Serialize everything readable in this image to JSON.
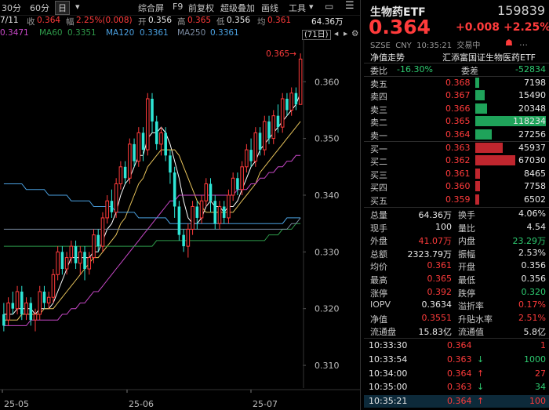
{
  "toolbar": {
    "items": [
      "30分",
      "60分",
      "日",
      "综合屏",
      "F9",
      "前复权",
      "超级叠加",
      "画线",
      "工具"
    ],
    "active": "日"
  },
  "info": {
    "date": "7/11",
    "close_label": "收",
    "close": "0.364",
    "change_label": "幅",
    "change": "2.25%(0.008)",
    "open_label": "开",
    "open": "0.356",
    "high_label": "高",
    "high": "0.365",
    "low_label": "低",
    "low": "0.356",
    "avg_label": "均",
    "avg": "0.361",
    "volume": "64.36万"
  },
  "ma": {
    "ma_partial": "0.3471",
    "ma60_label": "MA60",
    "ma60": "0.3351",
    "ma120_label": "MA120",
    "ma120": "0.3361",
    "ma250_label": "MA250",
    "ma250": "0.3361",
    "range_badge": "(71日)"
  },
  "chart_data": {
    "type": "candlestick",
    "title": "",
    "y_ticks": [
      "0.360",
      "0.350",
      "0.340",
      "0.330",
      "0.320",
      "0.310"
    ],
    "x_ticks": [
      "25-05",
      "25-06",
      "25-07"
    ],
    "ylim": [
      0.306,
      0.3675
    ],
    "high_marker": "0.365",
    "candles": [
      {
        "o": 0.319,
        "c": 0.317,
        "h": 0.321,
        "l": 0.316
      },
      {
        "o": 0.318,
        "c": 0.321,
        "h": 0.322,
        "l": 0.317
      },
      {
        "o": 0.321,
        "c": 0.32,
        "h": 0.323,
        "l": 0.319
      },
      {
        "o": 0.32,
        "c": 0.323,
        "h": 0.324,
        "l": 0.319
      },
      {
        "o": 0.323,
        "c": 0.319,
        "h": 0.324,
        "l": 0.318
      },
      {
        "o": 0.319,
        "c": 0.321,
        "h": 0.322,
        "l": 0.318
      },
      {
        "o": 0.321,
        "c": 0.318,
        "h": 0.322,
        "l": 0.317
      },
      {
        "o": 0.318,
        "c": 0.319,
        "h": 0.32,
        "l": 0.316
      },
      {
        "o": 0.319,
        "c": 0.323,
        "h": 0.324,
        "l": 0.318
      },
      {
        "o": 0.323,
        "c": 0.321,
        "h": 0.324,
        "l": 0.32
      },
      {
        "o": 0.321,
        "c": 0.322,
        "h": 0.323,
        "l": 0.32
      },
      {
        "o": 0.322,
        "c": 0.326,
        "h": 0.327,
        "l": 0.321
      },
      {
        "o": 0.326,
        "c": 0.33,
        "h": 0.331,
        "l": 0.325
      },
      {
        "o": 0.33,
        "c": 0.327,
        "h": 0.331,
        "l": 0.326
      },
      {
        "o": 0.327,
        "c": 0.329,
        "h": 0.33,
        "l": 0.326
      },
      {
        "o": 0.329,
        "c": 0.331,
        "h": 0.332,
        "l": 0.328
      },
      {
        "o": 0.331,
        "c": 0.328,
        "h": 0.332,
        "l": 0.327
      },
      {
        "o": 0.328,
        "c": 0.33,
        "h": 0.331,
        "l": 0.326
      },
      {
        "o": 0.33,
        "c": 0.327,
        "h": 0.331,
        "l": 0.325
      },
      {
        "o": 0.327,
        "c": 0.329,
        "h": 0.33,
        "l": 0.326
      },
      {
        "o": 0.329,
        "c": 0.333,
        "h": 0.334,
        "l": 0.328
      },
      {
        "o": 0.333,
        "c": 0.331,
        "h": 0.334,
        "l": 0.33
      },
      {
        "o": 0.331,
        "c": 0.336,
        "h": 0.337,
        "l": 0.33
      },
      {
        "o": 0.336,
        "c": 0.339,
        "h": 0.34,
        "l": 0.335
      },
      {
        "o": 0.339,
        "c": 0.337,
        "h": 0.341,
        "l": 0.336
      },
      {
        "o": 0.337,
        "c": 0.342,
        "h": 0.343,
        "l": 0.336
      },
      {
        "o": 0.342,
        "c": 0.345,
        "h": 0.346,
        "l": 0.341
      },
      {
        "o": 0.345,
        "c": 0.343,
        "h": 0.346,
        "l": 0.342
      },
      {
        "o": 0.343,
        "c": 0.349,
        "h": 0.35,
        "l": 0.342
      },
      {
        "o": 0.349,
        "c": 0.346,
        "h": 0.35,
        "l": 0.345
      },
      {
        "o": 0.346,
        "c": 0.351,
        "h": 0.352,
        "l": 0.345
      },
      {
        "o": 0.351,
        "c": 0.348,
        "h": 0.352,
        "l": 0.346
      },
      {
        "o": 0.348,
        "c": 0.357,
        "h": 0.358,
        "l": 0.347
      },
      {
        "o": 0.357,
        "c": 0.353,
        "h": 0.358,
        "l": 0.351
      },
      {
        "o": 0.353,
        "c": 0.349,
        "h": 0.354,
        "l": 0.348
      },
      {
        "o": 0.349,
        "c": 0.351,
        "h": 0.352,
        "l": 0.347
      },
      {
        "o": 0.351,
        "c": 0.347,
        "h": 0.352,
        "l": 0.346
      },
      {
        "o": 0.347,
        "c": 0.344,
        "h": 0.348,
        "l": 0.342
      },
      {
        "o": 0.344,
        "c": 0.338,
        "h": 0.345,
        "l": 0.336
      },
      {
        "o": 0.338,
        "c": 0.333,
        "h": 0.339,
        "l": 0.332
      },
      {
        "o": 0.333,
        "c": 0.331,
        "h": 0.334,
        "l": 0.33
      },
      {
        "o": 0.331,
        "c": 0.334,
        "h": 0.335,
        "l": 0.329
      },
      {
        "o": 0.334,
        "c": 0.338,
        "h": 0.339,
        "l": 0.333
      },
      {
        "o": 0.338,
        "c": 0.336,
        "h": 0.339,
        "l": 0.334
      },
      {
        "o": 0.336,
        "c": 0.339,
        "h": 0.34,
        "l": 0.335
      },
      {
        "o": 0.339,
        "c": 0.342,
        "h": 0.343,
        "l": 0.338
      },
      {
        "o": 0.342,
        "c": 0.339,
        "h": 0.343,
        "l": 0.337
      },
      {
        "o": 0.339,
        "c": 0.335,
        "h": 0.34,
        "l": 0.334
      },
      {
        "o": 0.335,
        "c": 0.338,
        "h": 0.339,
        "l": 0.334
      },
      {
        "o": 0.338,
        "c": 0.336,
        "h": 0.339,
        "l": 0.335
      },
      {
        "o": 0.336,
        "c": 0.34,
        "h": 0.341,
        "l": 0.335
      },
      {
        "o": 0.34,
        "c": 0.343,
        "h": 0.344,
        "l": 0.339
      },
      {
        "o": 0.343,
        "c": 0.341,
        "h": 0.344,
        "l": 0.34
      },
      {
        "o": 0.341,
        "c": 0.345,
        "h": 0.346,
        "l": 0.34
      },
      {
        "o": 0.345,
        "c": 0.348,
        "h": 0.349,
        "l": 0.344
      },
      {
        "o": 0.348,
        "c": 0.346,
        "h": 0.35,
        "l": 0.345
      },
      {
        "o": 0.346,
        "c": 0.351,
        "h": 0.352,
        "l": 0.345
      },
      {
        "o": 0.351,
        "c": 0.348,
        "h": 0.352,
        "l": 0.347
      },
      {
        "o": 0.348,
        "c": 0.353,
        "h": 0.354,
        "l": 0.347
      },
      {
        "o": 0.353,
        "c": 0.35,
        "h": 0.354,
        "l": 0.349
      },
      {
        "o": 0.35,
        "c": 0.354,
        "h": 0.355,
        "l": 0.349
      },
      {
        "o": 0.354,
        "c": 0.352,
        "h": 0.356,
        "l": 0.351
      },
      {
        "o": 0.352,
        "c": 0.357,
        "h": 0.358,
        "l": 0.351
      },
      {
        "o": 0.357,
        "c": 0.355,
        "h": 0.358,
        "l": 0.354
      },
      {
        "o": 0.355,
        "c": 0.358,
        "h": 0.359,
        "l": 0.354
      },
      {
        "o": 0.358,
        "c": 0.356,
        "h": 0.359,
        "l": 0.355
      },
      {
        "o": 0.356,
        "c": 0.364,
        "h": 0.365,
        "l": 0.356
      }
    ],
    "ma_lines": [
      {
        "name": "MA5",
        "color": "#ffffff",
        "values": [
          0.319,
          0.319,
          0.319,
          0.32,
          0.32,
          0.32,
          0.32,
          0.319,
          0.32,
          0.32,
          0.32,
          0.321,
          0.323,
          0.325,
          0.327,
          0.329,
          0.329,
          0.329,
          0.329,
          0.329,
          0.33,
          0.33,
          0.332,
          0.334,
          0.335,
          0.337,
          0.34,
          0.342,
          0.343,
          0.345,
          0.347,
          0.347,
          0.35,
          0.351,
          0.351,
          0.352,
          0.351,
          0.349,
          0.346,
          0.343,
          0.339,
          0.336,
          0.335,
          0.335,
          0.336,
          0.338,
          0.339,
          0.338,
          0.338,
          0.337,
          0.338,
          0.338,
          0.339,
          0.341,
          0.343,
          0.345,
          0.346,
          0.348,
          0.349,
          0.35,
          0.351,
          0.352,
          0.353,
          0.354,
          0.355,
          0.356,
          0.358
        ]
      },
      {
        "name": "MA10",
        "color": "#e6c25a",
        "values": [
          0.318,
          0.318,
          0.318,
          0.318,
          0.319,
          0.319,
          0.319,
          0.319,
          0.319,
          0.32,
          0.32,
          0.32,
          0.321,
          0.322,
          0.323,
          0.324,
          0.325,
          0.326,
          0.327,
          0.328,
          0.329,
          0.329,
          0.33,
          0.331,
          0.332,
          0.333,
          0.335,
          0.336,
          0.338,
          0.34,
          0.342,
          0.343,
          0.345,
          0.346,
          0.347,
          0.348,
          0.348,
          0.348,
          0.348,
          0.347,
          0.345,
          0.343,
          0.341,
          0.339,
          0.338,
          0.337,
          0.337,
          0.337,
          0.337,
          0.337,
          0.337,
          0.337,
          0.338,
          0.339,
          0.34,
          0.341,
          0.342,
          0.344,
          0.345,
          0.346,
          0.347,
          0.348,
          0.349,
          0.35,
          0.351,
          0.352,
          0.353
        ]
      },
      {
        "name": "MA20",
        "color": "#c848c8",
        "values": [
          0.317,
          0.317,
          0.317,
          0.317,
          0.317,
          0.317,
          0.318,
          0.318,
          0.318,
          0.318,
          0.318,
          0.318,
          0.318,
          0.319,
          0.319,
          0.32,
          0.32,
          0.321,
          0.321,
          0.322,
          0.323,
          0.323,
          0.324,
          0.325,
          0.326,
          0.327,
          0.328,
          0.329,
          0.33,
          0.331,
          0.332,
          0.333,
          0.334,
          0.335,
          0.336,
          0.337,
          0.338,
          0.339,
          0.339,
          0.34,
          0.34,
          0.34,
          0.34,
          0.34,
          0.34,
          0.34,
          0.34,
          0.34,
          0.34,
          0.34,
          0.34,
          0.34,
          0.341,
          0.341,
          0.341,
          0.342,
          0.342,
          0.343,
          0.343,
          0.344,
          0.344,
          0.345,
          0.345,
          0.346,
          0.346,
          0.347,
          0.347
        ]
      },
      {
        "name": "MA60",
        "color": "#2e9a4a",
        "values": [
          0.331,
          0.331,
          0.331,
          0.331,
          0.331,
          0.331,
          0.331,
          0.331,
          0.331,
          0.331,
          0.331,
          0.331,
          0.331,
          0.331,
          0.331,
          0.331,
          0.331,
          0.331,
          0.331,
          0.331,
          0.331,
          0.331,
          0.331,
          0.331,
          0.331,
          0.331,
          0.331,
          0.331,
          0.331,
          0.331,
          0.331,
          0.331,
          0.331,
          0.331,
          0.332,
          0.332,
          0.332,
          0.332,
          0.332,
          0.332,
          0.332,
          0.332,
          0.332,
          0.332,
          0.332,
          0.332,
          0.332,
          0.332,
          0.332,
          0.332,
          0.332,
          0.332,
          0.332,
          0.332,
          0.332,
          0.332,
          0.332,
          0.332,
          0.332,
          0.333,
          0.333,
          0.333,
          0.334,
          0.334,
          0.334,
          0.335,
          0.335
        ]
      },
      {
        "name": "MA120",
        "color": "#4aa0e0",
        "values": [
          0.342,
          0.342,
          0.342,
          0.342,
          0.342,
          0.341,
          0.341,
          0.341,
          0.341,
          0.341,
          0.34,
          0.34,
          0.34,
          0.34,
          0.34,
          0.339,
          0.339,
          0.339,
          0.339,
          0.339,
          0.338,
          0.338,
          0.338,
          0.338,
          0.338,
          0.337,
          0.337,
          0.337,
          0.337,
          0.337,
          0.336,
          0.336,
          0.336,
          0.336,
          0.336,
          0.336,
          0.336,
          0.335,
          0.335,
          0.335,
          0.335,
          0.335,
          0.335,
          0.335,
          0.335,
          0.335,
          0.335,
          0.335,
          0.335,
          0.335,
          0.335,
          0.335,
          0.335,
          0.335,
          0.335,
          0.335,
          0.335,
          0.335,
          0.335,
          0.335,
          0.335,
          0.335,
          0.335,
          0.336,
          0.336,
          0.336,
          0.336
        ]
      },
      {
        "name": "MA250",
        "color": "#7a8aa0",
        "values": [
          0.334,
          0.334,
          0.334,
          0.334,
          0.334,
          0.334,
          0.334,
          0.334,
          0.334,
          0.334,
          0.334,
          0.334,
          0.334,
          0.334,
          0.334,
          0.334,
          0.334,
          0.334,
          0.334,
          0.334,
          0.334,
          0.334,
          0.334,
          0.334,
          0.334,
          0.334,
          0.334,
          0.334,
          0.334,
          0.334,
          0.334,
          0.334,
          0.334,
          0.334,
          0.334,
          0.334,
          0.334,
          0.334,
          0.334,
          0.334,
          0.334,
          0.334,
          0.334,
          0.334,
          0.334,
          0.334,
          0.334,
          0.334,
          0.334,
          0.334,
          0.334,
          0.334,
          0.334,
          0.334,
          0.334,
          0.334,
          0.334,
          0.334,
          0.334,
          0.334,
          0.334,
          0.334,
          0.334,
          0.334,
          0.335,
          0.335,
          0.336
        ]
      }
    ]
  },
  "panel": {
    "name": "生物药ETF",
    "code": "159839",
    "price": "0.364",
    "change": "+0.008",
    "change_pct": "+2.25%",
    "exchange_line": "SZSE  CNY  10:35:21  交易中",
    "fund_label": "净值走势",
    "fund_name": "汇添富国证生物医药ETF",
    "wb_label": "委比",
    "wb_value": "-16.30%",
    "wc_label": "委差",
    "wc_value": "-52834",
    "asks": [
      {
        "label": "卖五",
        "price": "0.368",
        "vol": "7198",
        "frac": 0.06
      },
      {
        "label": "卖四",
        "price": "0.367",
        "vol": "15490",
        "frac": 0.13
      },
      {
        "label": "卖三",
        "price": "0.366",
        "vol": "20348",
        "frac": 0.17
      },
      {
        "label": "卖二",
        "price": "0.365",
        "vol": "118234",
        "frac": 1.0
      },
      {
        "label": "卖一",
        "price": "0.364",
        "vol": "27256",
        "frac": 0.23
      }
    ],
    "bids": [
      {
        "label": "买一",
        "price": "0.363",
        "vol": "45937",
        "frac": 0.39
      },
      {
        "label": "买二",
        "price": "0.362",
        "vol": "67030",
        "frac": 0.57
      },
      {
        "label": "买三",
        "price": "0.361",
        "vol": "8465",
        "frac": 0.07
      },
      {
        "label": "买四",
        "price": "0.360",
        "vol": "7758",
        "frac": 0.07
      },
      {
        "label": "买五",
        "price": "0.359",
        "vol": "6502",
        "frac": 0.05
      }
    ],
    "stats": [
      {
        "l1": "总量",
        "v1": "64.36万",
        "c1": "white",
        "l2": "换手",
        "v2": "4.06%",
        "c2": "white"
      },
      {
        "l1": "现手",
        "v1": "100",
        "c1": "white",
        "l2": "量比",
        "v2": "4.54",
        "c2": "white"
      },
      {
        "l1": "外盘",
        "v1": "41.07万",
        "c1": "red",
        "l2": "内盘",
        "v2": "23.29万",
        "c2": "green"
      },
      {
        "l1": "总额",
        "v1": "2323.79万",
        "c1": "white",
        "l2": "振幅",
        "v2": "2.53%",
        "c2": "white"
      },
      {
        "l1": "均价",
        "v1": "0.361",
        "c1": "red",
        "l2": "开盘",
        "v2": "0.356",
        "c2": "white"
      },
      {
        "l1": "最高",
        "v1": "0.365",
        "c1": "red",
        "l2": "最低",
        "v2": "0.356",
        "c2": "white"
      },
      {
        "l1": "涨停",
        "v1": "0.392",
        "c1": "red",
        "l2": "跌停",
        "v2": "0.320",
        "c2": "green"
      },
      {
        "l1": "IOPV",
        "v1": "0.3634",
        "c1": "white",
        "l2": "溢折率",
        "v2": "0.17%",
        "c2": "red"
      },
      {
        "l1": "净值",
        "v1": "0.3551",
        "c1": "red",
        "l2": "升贴水率",
        "v2": "2.51%",
        "c2": "red"
      },
      {
        "l1": "流通盘",
        "v1": "15.83亿",
        "c1": "white",
        "l2": "流通值",
        "v2": "5.8亿",
        "c2": "white"
      }
    ],
    "ticks": [
      {
        "time": "10:33:30",
        "price": "0.364",
        "arrow": "",
        "vol": "1",
        "vcolor": "red"
      },
      {
        "time": "10:33:54",
        "price": "0.363",
        "arrow": "↓",
        "vol": "1000",
        "vcolor": "green"
      },
      {
        "time": "10:34:00",
        "price": "0.364",
        "arrow": "↑",
        "vol": "27",
        "vcolor": "red"
      },
      {
        "time": "10:35:00",
        "price": "0.363",
        "arrow": "↓",
        "vol": "34",
        "vcolor": "green"
      },
      {
        "time": "10:35:21",
        "price": "0.364",
        "arrow": "↑",
        "vol": "100",
        "vcolor": "red"
      }
    ]
  },
  "colors": {
    "up": "#ff3b3b",
    "down": "#2ee6d6",
    "green": "#2ecc71",
    "accent_bar_red": "#c0262e",
    "accent_bar_green": "#1fa35a"
  }
}
